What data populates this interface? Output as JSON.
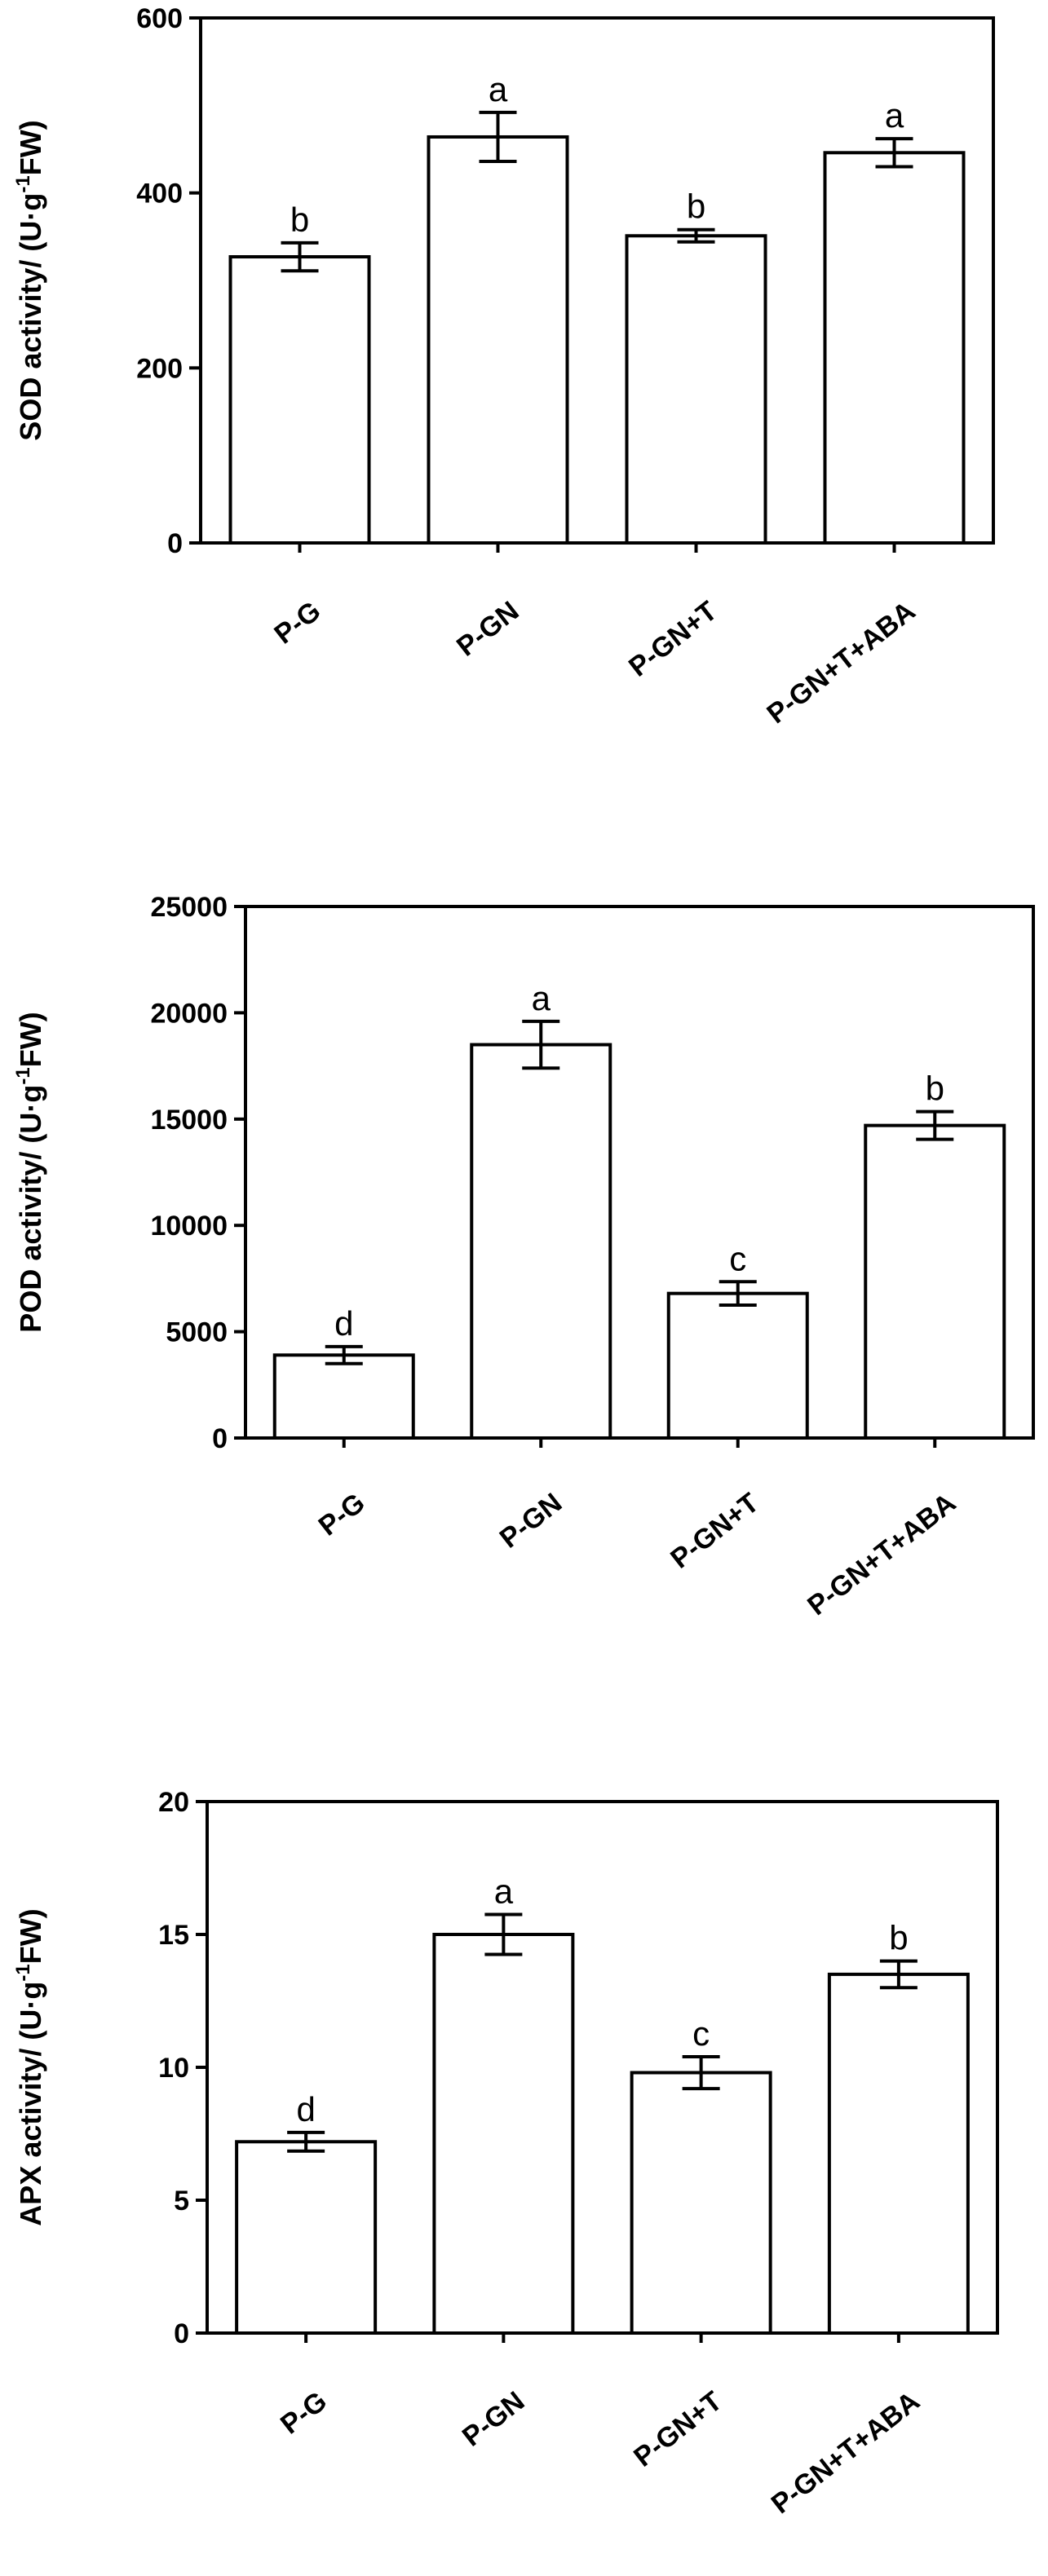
{
  "chart_data": [
    {
      "type": "bar",
      "categories": [
        "P-G",
        "P-GN",
        "P-GN+T",
        "P-GN+T+ABA"
      ],
      "values": [
        327,
        464,
        351,
        446
      ],
      "errors": [
        16,
        28,
        7,
        16
      ],
      "significance": [
        "b",
        "a",
        "b",
        "a"
      ],
      "ylabel_main": "SOD activity/ (U·g",
      "ylabel_sup": "-1",
      "ylabel_end": "FW)",
      "ylim": [
        0,
        600
      ],
      "yticks": [
        "0",
        "200",
        "400",
        "600"
      ],
      "grid": false
    },
    {
      "type": "bar",
      "categories": [
        "P-G",
        "P-GN",
        "P-GN+T",
        "P-GN+T+ABA"
      ],
      "values": [
        3900,
        18500,
        6800,
        14700
      ],
      "errors": [
        400,
        1100,
        550,
        650
      ],
      "significance": [
        "d",
        "a",
        "c",
        "b"
      ],
      "ylabel_main": "POD activity/ (U·g",
      "ylabel_sup": "-1",
      "ylabel_end": "FW)",
      "ylim": [
        0,
        25000
      ],
      "yticks": [
        "0",
        "5000",
        "10000",
        "15000",
        "20000",
        "25000"
      ],
      "grid": false
    },
    {
      "type": "bar",
      "categories": [
        "P-G",
        "P-GN",
        "P-GN+T",
        "P-GN+T+ABA"
      ],
      "values": [
        7.2,
        15.0,
        9.8,
        13.5
      ],
      "errors": [
        0.35,
        0.75,
        0.6,
        0.5
      ],
      "significance": [
        "d",
        "a",
        "c",
        "b"
      ],
      "ylabel_main": "APX activity/ (U·g",
      "ylabel_sup": "-1",
      "ylabel_end": "FW)",
      "ylim": [
        0,
        20
      ],
      "yticks": [
        "0",
        "5",
        "10",
        "15",
        "20"
      ],
      "grid": false
    }
  ]
}
